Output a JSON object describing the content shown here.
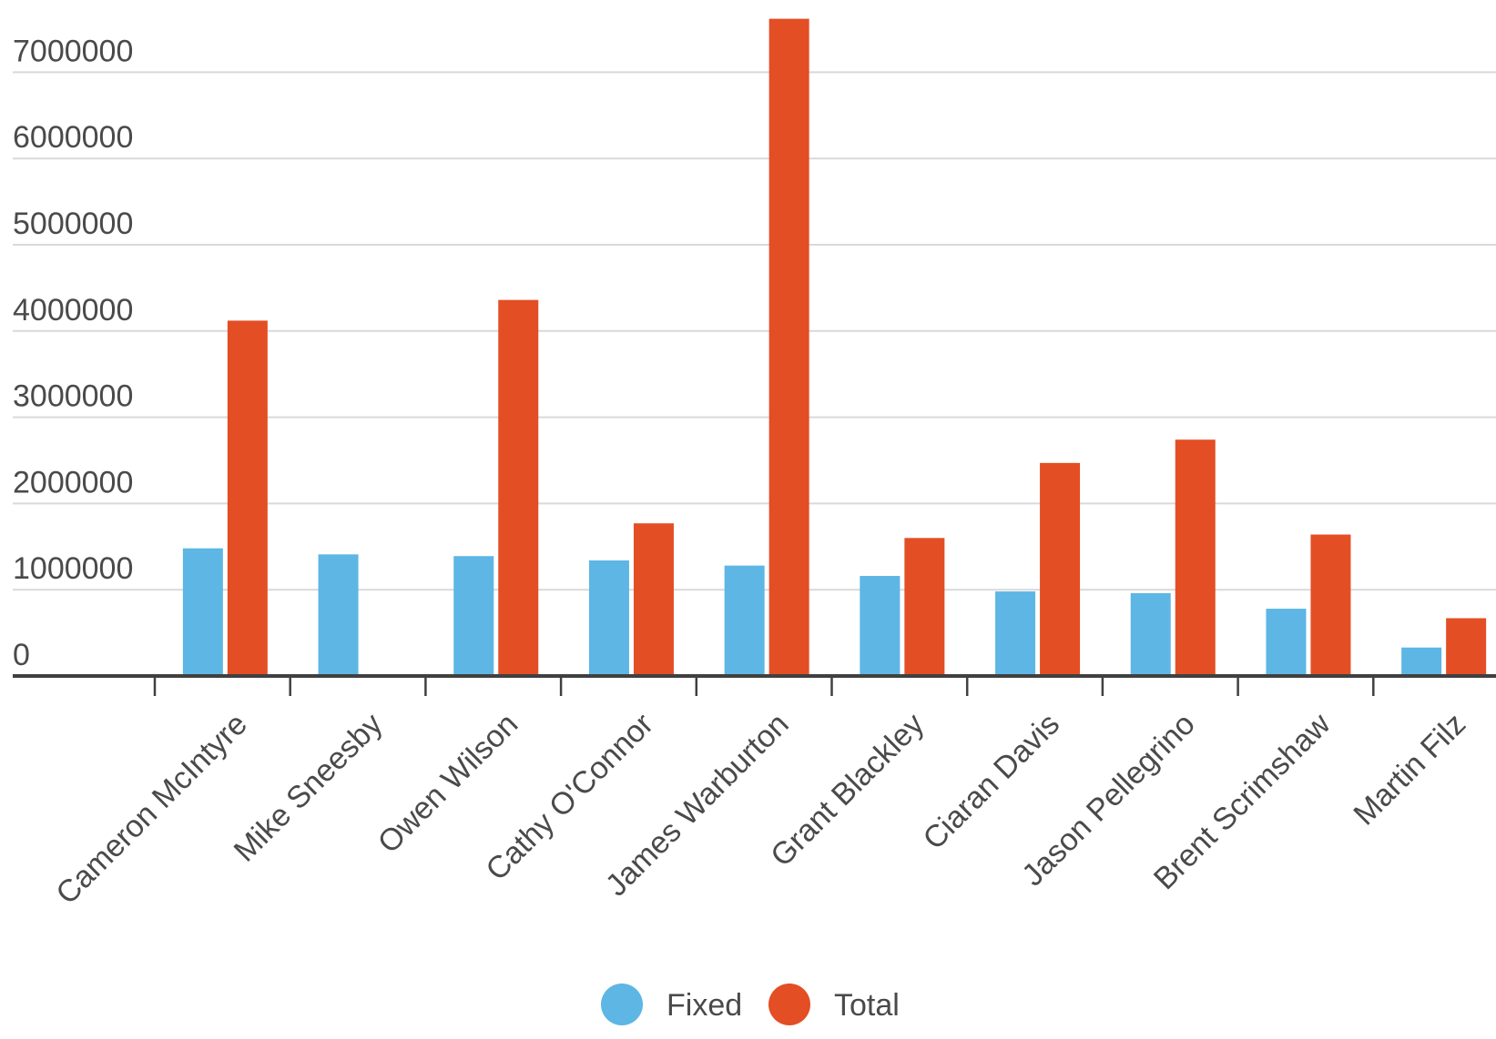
{
  "chart_data": {
    "type": "bar",
    "categories": [
      "Cameron McIntyre",
      "Mike Sneesby",
      "Owen Wilson",
      "Cathy O'Connor",
      "James Warburton",
      "Grant Blackley",
      "Ciaran Davis",
      "Jason Pellegrino",
      "Brent Scrimshaw",
      "Martin Filz"
    ],
    "series": [
      {
        "name": "Fixed",
        "color": "#5db6e4",
        "values": [
          1480000,
          1410000,
          1390000,
          1340000,
          1280000,
          1160000,
          980000,
          960000,
          780000,
          330000
        ]
      },
      {
        "name": "Total",
        "color": "#e34e24",
        "values": [
          4120000,
          null,
          4360000,
          1770000,
          7620000,
          1600000,
          2470000,
          2740000,
          1640000,
          670000
        ]
      }
    ],
    "yticks": [
      "0",
      "1000000",
      "2000000",
      "3000000",
      "4000000",
      "5000000",
      "6000000",
      "7000000"
    ],
    "ylim": [
      0,
      7620000
    ],
    "grid": true,
    "legend_position": "bottom-center"
  }
}
